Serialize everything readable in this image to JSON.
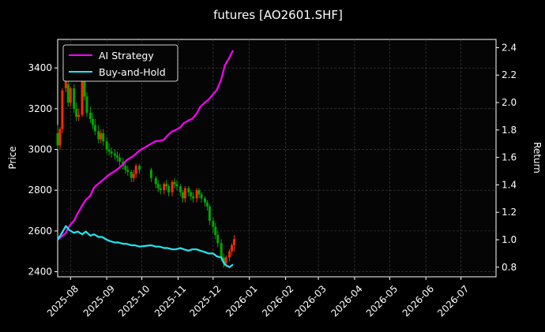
{
  "chart_data": {
    "type": "candlestick+line",
    "title": "futures [AO2601.SHF]",
    "xlabel": "",
    "ylabel_left": "Price",
    "ylabel_right": "Return",
    "xlim": [
      "2025-07-21",
      "2026-07-31"
    ],
    "ylim_left": [
      2375,
      3540
    ],
    "ylim_right": [
      0.73,
      2.46
    ],
    "x_ticks": [
      "2025-08",
      "2025-09",
      "2025-10",
      "2025-11",
      "2025-12",
      "2026-01",
      "2026-02",
      "2026-03",
      "2026-04",
      "2026-05",
      "2026-06",
      "2026-07"
    ],
    "y_ticks_left": [
      2400,
      2600,
      2800,
      3000,
      3200,
      3400
    ],
    "y_ticks_right": [
      0.8,
      1.0,
      1.2,
      1.4,
      1.6,
      1.8,
      2.0,
      2.2,
      2.4
    ],
    "grid": true,
    "legend_position": "top-left",
    "colors": {
      "background": "#000000",
      "ai_strategy": "#ff00ff",
      "buy_and_hold": "#22e8f2",
      "candle_up": "#ff2a00",
      "candle_down": "#00a800",
      "grid": "#444444"
    },
    "series": [
      {
        "name": "AI Strategy",
        "x": [
          "2025-07-21",
          "2025-07-24",
          "2025-07-28",
          "2025-07-31",
          "2025-08-04",
          "2025-08-07",
          "2025-08-11",
          "2025-08-14",
          "2025-08-18",
          "2025-08-21",
          "2025-08-25",
          "2025-08-28",
          "2025-09-01",
          "2025-09-04",
          "2025-09-08",
          "2025-09-11",
          "2025-09-15",
          "2025-09-18",
          "2025-09-22",
          "2025-09-25",
          "2025-09-29",
          "2025-10-09",
          "2025-10-13",
          "2025-10-16",
          "2025-10-20",
          "2025-10-23",
          "2025-10-27",
          "2025-10-30",
          "2025-11-03",
          "2025-11-06",
          "2025-11-10",
          "2025-11-13",
          "2025-11-17",
          "2025-11-20",
          "2025-11-24",
          "2025-11-27",
          "2025-12-01",
          "2025-12-04",
          "2025-12-08",
          "2025-12-11",
          "2025-12-15",
          "2025-12-18"
        ],
        "values": [
          1.0,
          1.02,
          1.05,
          1.1,
          1.14,
          1.19,
          1.25,
          1.29,
          1.32,
          1.38,
          1.41,
          1.43,
          1.46,
          1.48,
          1.5,
          1.52,
          1.55,
          1.58,
          1.6,
          1.62,
          1.65,
          1.7,
          1.72,
          1.72,
          1.73,
          1.76,
          1.79,
          1.8,
          1.82,
          1.85,
          1.87,
          1.88,
          1.92,
          1.97,
          2.0,
          2.02,
          2.06,
          2.09,
          2.17,
          2.27,
          2.33,
          2.38
        ]
      },
      {
        "name": "Buy-and-Hold",
        "x": [
          "2025-07-21",
          "2025-07-24",
          "2025-07-28",
          "2025-07-31",
          "2025-08-04",
          "2025-08-07",
          "2025-08-11",
          "2025-08-14",
          "2025-08-18",
          "2025-08-21",
          "2025-08-25",
          "2025-08-28",
          "2025-09-01",
          "2025-09-04",
          "2025-09-08",
          "2025-09-11",
          "2025-09-15",
          "2025-09-18",
          "2025-09-22",
          "2025-09-25",
          "2025-09-29",
          "2025-10-09",
          "2025-10-13",
          "2025-10-16",
          "2025-10-20",
          "2025-10-23",
          "2025-10-27",
          "2025-10-30",
          "2025-11-03",
          "2025-11-06",
          "2025-11-10",
          "2025-11-13",
          "2025-11-17",
          "2025-11-20",
          "2025-11-24",
          "2025-11-27",
          "2025-12-01",
          "2025-12-04",
          "2025-12-08",
          "2025-12-11",
          "2025-12-15",
          "2025-12-18"
        ],
        "values": [
          1.0,
          1.04,
          1.1,
          1.07,
          1.05,
          1.06,
          1.04,
          1.06,
          1.03,
          1.04,
          1.02,
          1.02,
          1.0,
          0.99,
          0.98,
          0.98,
          0.97,
          0.97,
          0.96,
          0.96,
          0.95,
          0.96,
          0.95,
          0.95,
          0.94,
          0.94,
          0.93,
          0.93,
          0.94,
          0.93,
          0.92,
          0.93,
          0.93,
          0.92,
          0.91,
          0.9,
          0.9,
          0.88,
          0.87,
          0.82,
          0.8,
          0.82
        ]
      }
    ],
    "candles": {
      "x": [
        "2025-07-21",
        "2025-07-23",
        "2025-07-25",
        "2025-07-28",
        "2025-07-30",
        "2025-08-01",
        "2025-08-04",
        "2025-08-06",
        "2025-08-08",
        "2025-08-11",
        "2025-08-13",
        "2025-08-15",
        "2025-08-18",
        "2025-08-20",
        "2025-08-22",
        "2025-08-25",
        "2025-08-27",
        "2025-08-29",
        "2025-09-01",
        "2025-09-03",
        "2025-09-05",
        "2025-09-08",
        "2025-09-10",
        "2025-09-12",
        "2025-09-15",
        "2025-09-17",
        "2025-09-19",
        "2025-09-22",
        "2025-09-24",
        "2025-09-26",
        "2025-09-29",
        "2025-10-09",
        "2025-10-13",
        "2025-10-15",
        "2025-10-17",
        "2025-10-20",
        "2025-10-22",
        "2025-10-24",
        "2025-10-27",
        "2025-10-29",
        "2025-10-31",
        "2025-11-03",
        "2025-11-05",
        "2025-11-07",
        "2025-11-10",
        "2025-11-12",
        "2025-11-14",
        "2025-11-17",
        "2025-11-19",
        "2025-11-21",
        "2025-11-24",
        "2025-11-26",
        "2025-11-28",
        "2025-12-01",
        "2025-12-03",
        "2025-12-05",
        "2025-12-08",
        "2025-12-10",
        "2025-12-12",
        "2025-12-15",
        "2025-12-17",
        "2025-12-19"
      ],
      "open": [
        3080,
        3020,
        3100,
        3300,
        3320,
        3230,
        3300,
        3200,
        3160,
        3170,
        3360,
        3260,
        3180,
        3150,
        3120,
        3090,
        3050,
        3080,
        3040,
        3000,
        2990,
        2980,
        2970,
        2960,
        2940,
        2920,
        2900,
        2890,
        2860,
        2880,
        2920,
        2900,
        2860,
        2830,
        2810,
        2800,
        2830,
        2820,
        2790,
        2840,
        2830,
        2820,
        2790,
        2760,
        2810,
        2790,
        2770,
        2760,
        2800,
        2780,
        2760,
        2740,
        2720,
        2650,
        2620,
        2580,
        2540,
        2470,
        2440,
        2470,
        2500,
        2530
      ],
      "close": [
        3020,
        3100,
        3290,
        3340,
        3230,
        3300,
        3200,
        3160,
        3170,
        3360,
        3260,
        3180,
        3150,
        3120,
        3090,
        3050,
        3080,
        3040,
        3000,
        2990,
        2980,
        2970,
        2960,
        2940,
        2920,
        2900,
        2890,
        2860,
        2880,
        2920,
        2900,
        2860,
        2830,
        2810,
        2800,
        2830,
        2820,
        2790,
        2840,
        2830,
        2820,
        2790,
        2760,
        2810,
        2790,
        2770,
        2760,
        2800,
        2780,
        2760,
        2740,
        2720,
        2650,
        2620,
        2580,
        2540,
        2470,
        2440,
        2470,
        2500,
        2530,
        2560
      ],
      "high": [
        3120,
        3110,
        3300,
        3420,
        3360,
        3310,
        3320,
        3230,
        3200,
        3380,
        3380,
        3280,
        3210,
        3180,
        3150,
        3120,
        3100,
        3100,
        3060,
        3030,
        3010,
        3000,
        2990,
        2980,
        2960,
        2940,
        2920,
        2900,
        2900,
        2930,
        2930,
        2910,
        2870,
        2850,
        2830,
        2840,
        2850,
        2830,
        2850,
        2860,
        2850,
        2830,
        2800,
        2820,
        2820,
        2800,
        2790,
        2810,
        2810,
        2790,
        2770,
        2750,
        2730,
        2670,
        2640,
        2600,
        2560,
        2490,
        2480,
        2510,
        2540,
        2580
      ],
      "low": [
        3000,
        3000,
        3080,
        3280,
        3210,
        3210,
        3180,
        3140,
        3140,
        3160,
        3240,
        3160,
        3130,
        3100,
        3070,
        3030,
        3030,
        3020,
        2980,
        2970,
        2960,
        2950,
        2940,
        2920,
        2900,
        2880,
        2870,
        2840,
        2840,
        2860,
        2880,
        2840,
        2810,
        2790,
        2780,
        2780,
        2800,
        2770,
        2770,
        2810,
        2800,
        2770,
        2740,
        2740,
        2770,
        2750,
        2740,
        2740,
        2760,
        2740,
        2720,
        2700,
        2630,
        2590,
        2560,
        2520,
        2450,
        2420,
        2420,
        2450,
        2480,
        2500
      ]
    }
  }
}
